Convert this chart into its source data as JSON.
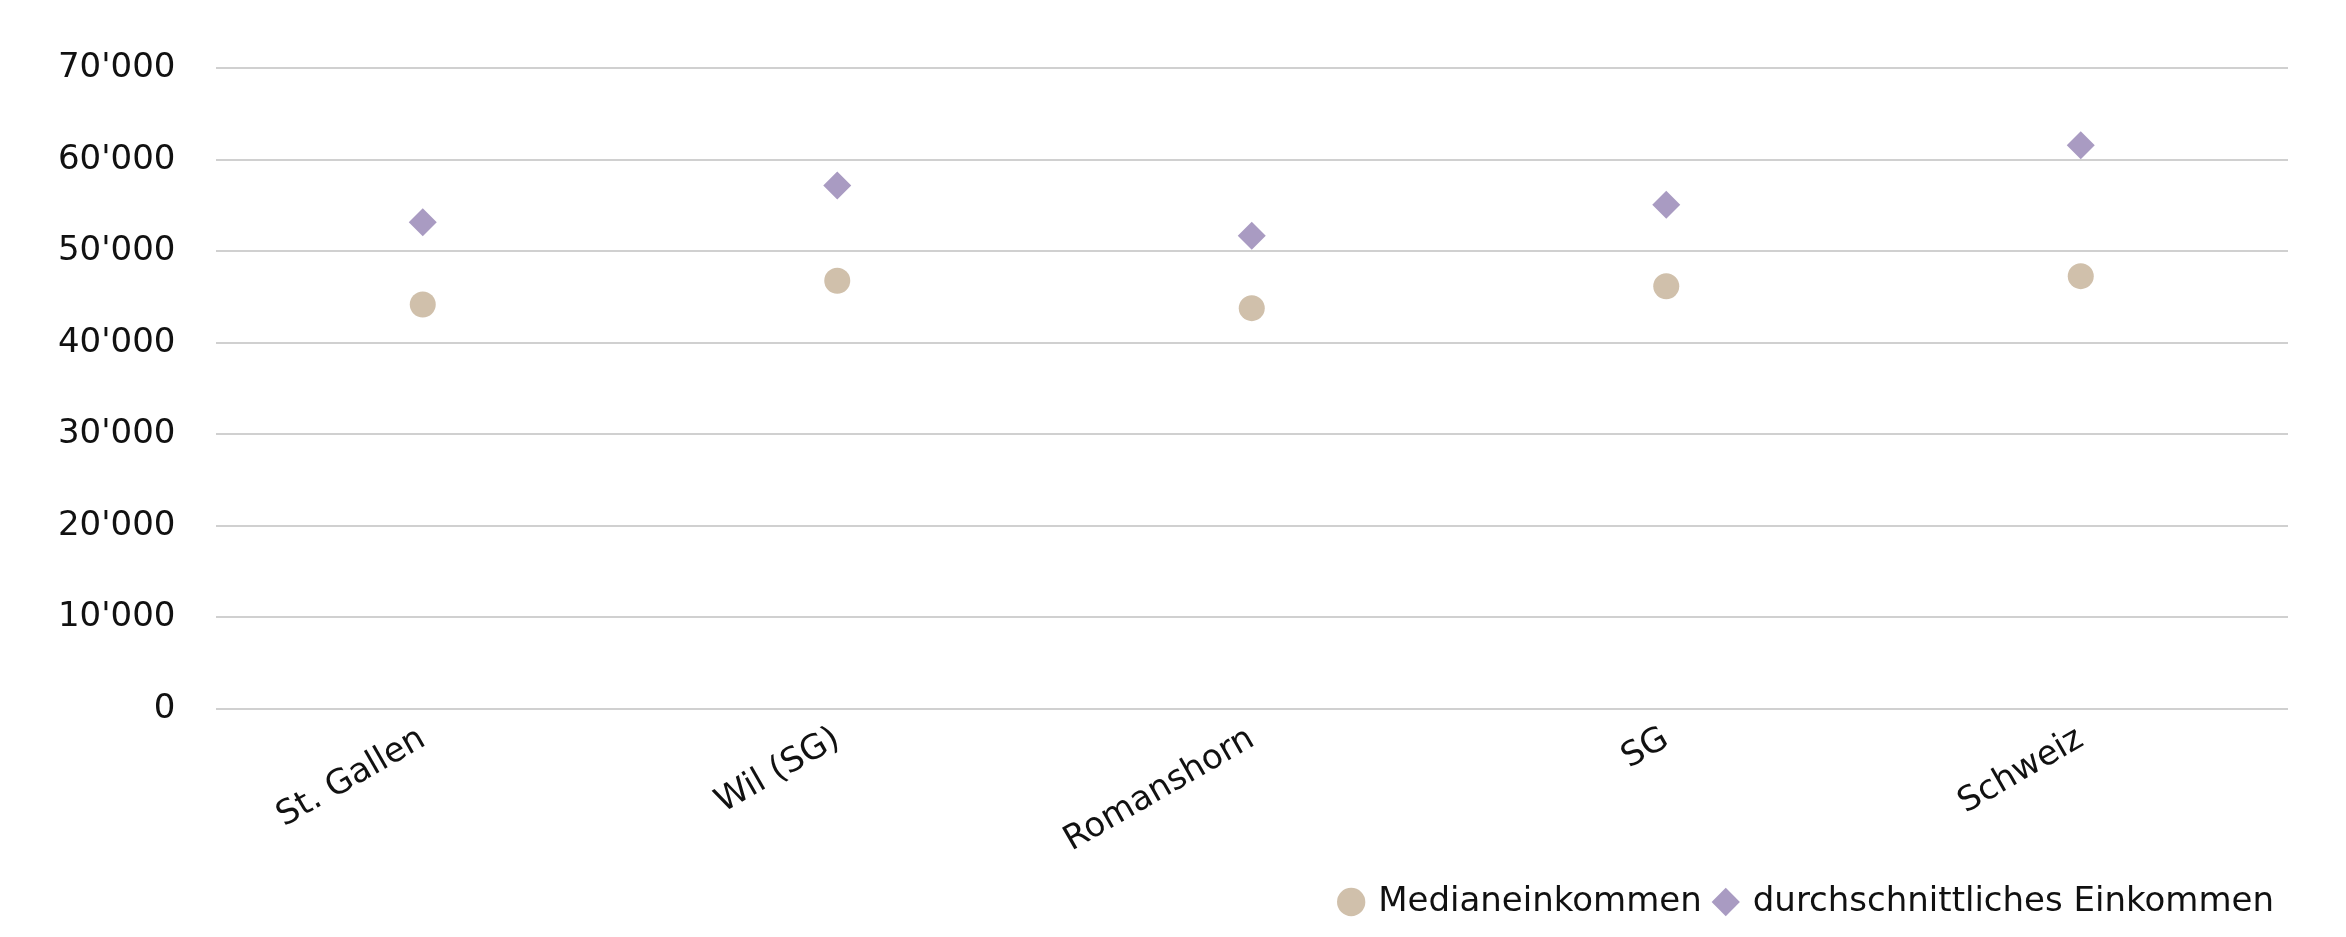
{
  "chart_data": {
    "type": "scatter",
    "categories": [
      "St. Gallen",
      "Wil (SG)",
      "Romanshorn",
      "SG",
      "Schweiz"
    ],
    "series": [
      {
        "name": "Medianeinkommen",
        "color": "#d0c0ab",
        "marker": "circle",
        "values": [
          44200,
          46800,
          43800,
          46200,
          47300
        ]
      },
      {
        "name": "durchschnittliches Einkommen",
        "color": "#a99bc2",
        "marker": "diamond",
        "values": [
          53200,
          57200,
          51700,
          55100,
          61600
        ]
      }
    ],
    "ylim": [
      0,
      70000
    ],
    "yticks": [
      {
        "value": 0,
        "label": "0"
      },
      {
        "value": 10000,
        "label": "10'000"
      },
      {
        "value": 20000,
        "label": "20'000"
      },
      {
        "value": 30000,
        "label": "30'000"
      },
      {
        "value": 40000,
        "label": "40'000"
      },
      {
        "value": 50000,
        "label": "50'000"
      },
      {
        "value": 60000,
        "label": "60'000"
      },
      {
        "value": 70000,
        "label": "70'000"
      }
    ],
    "grid": "y",
    "legend": "bottom right"
  }
}
